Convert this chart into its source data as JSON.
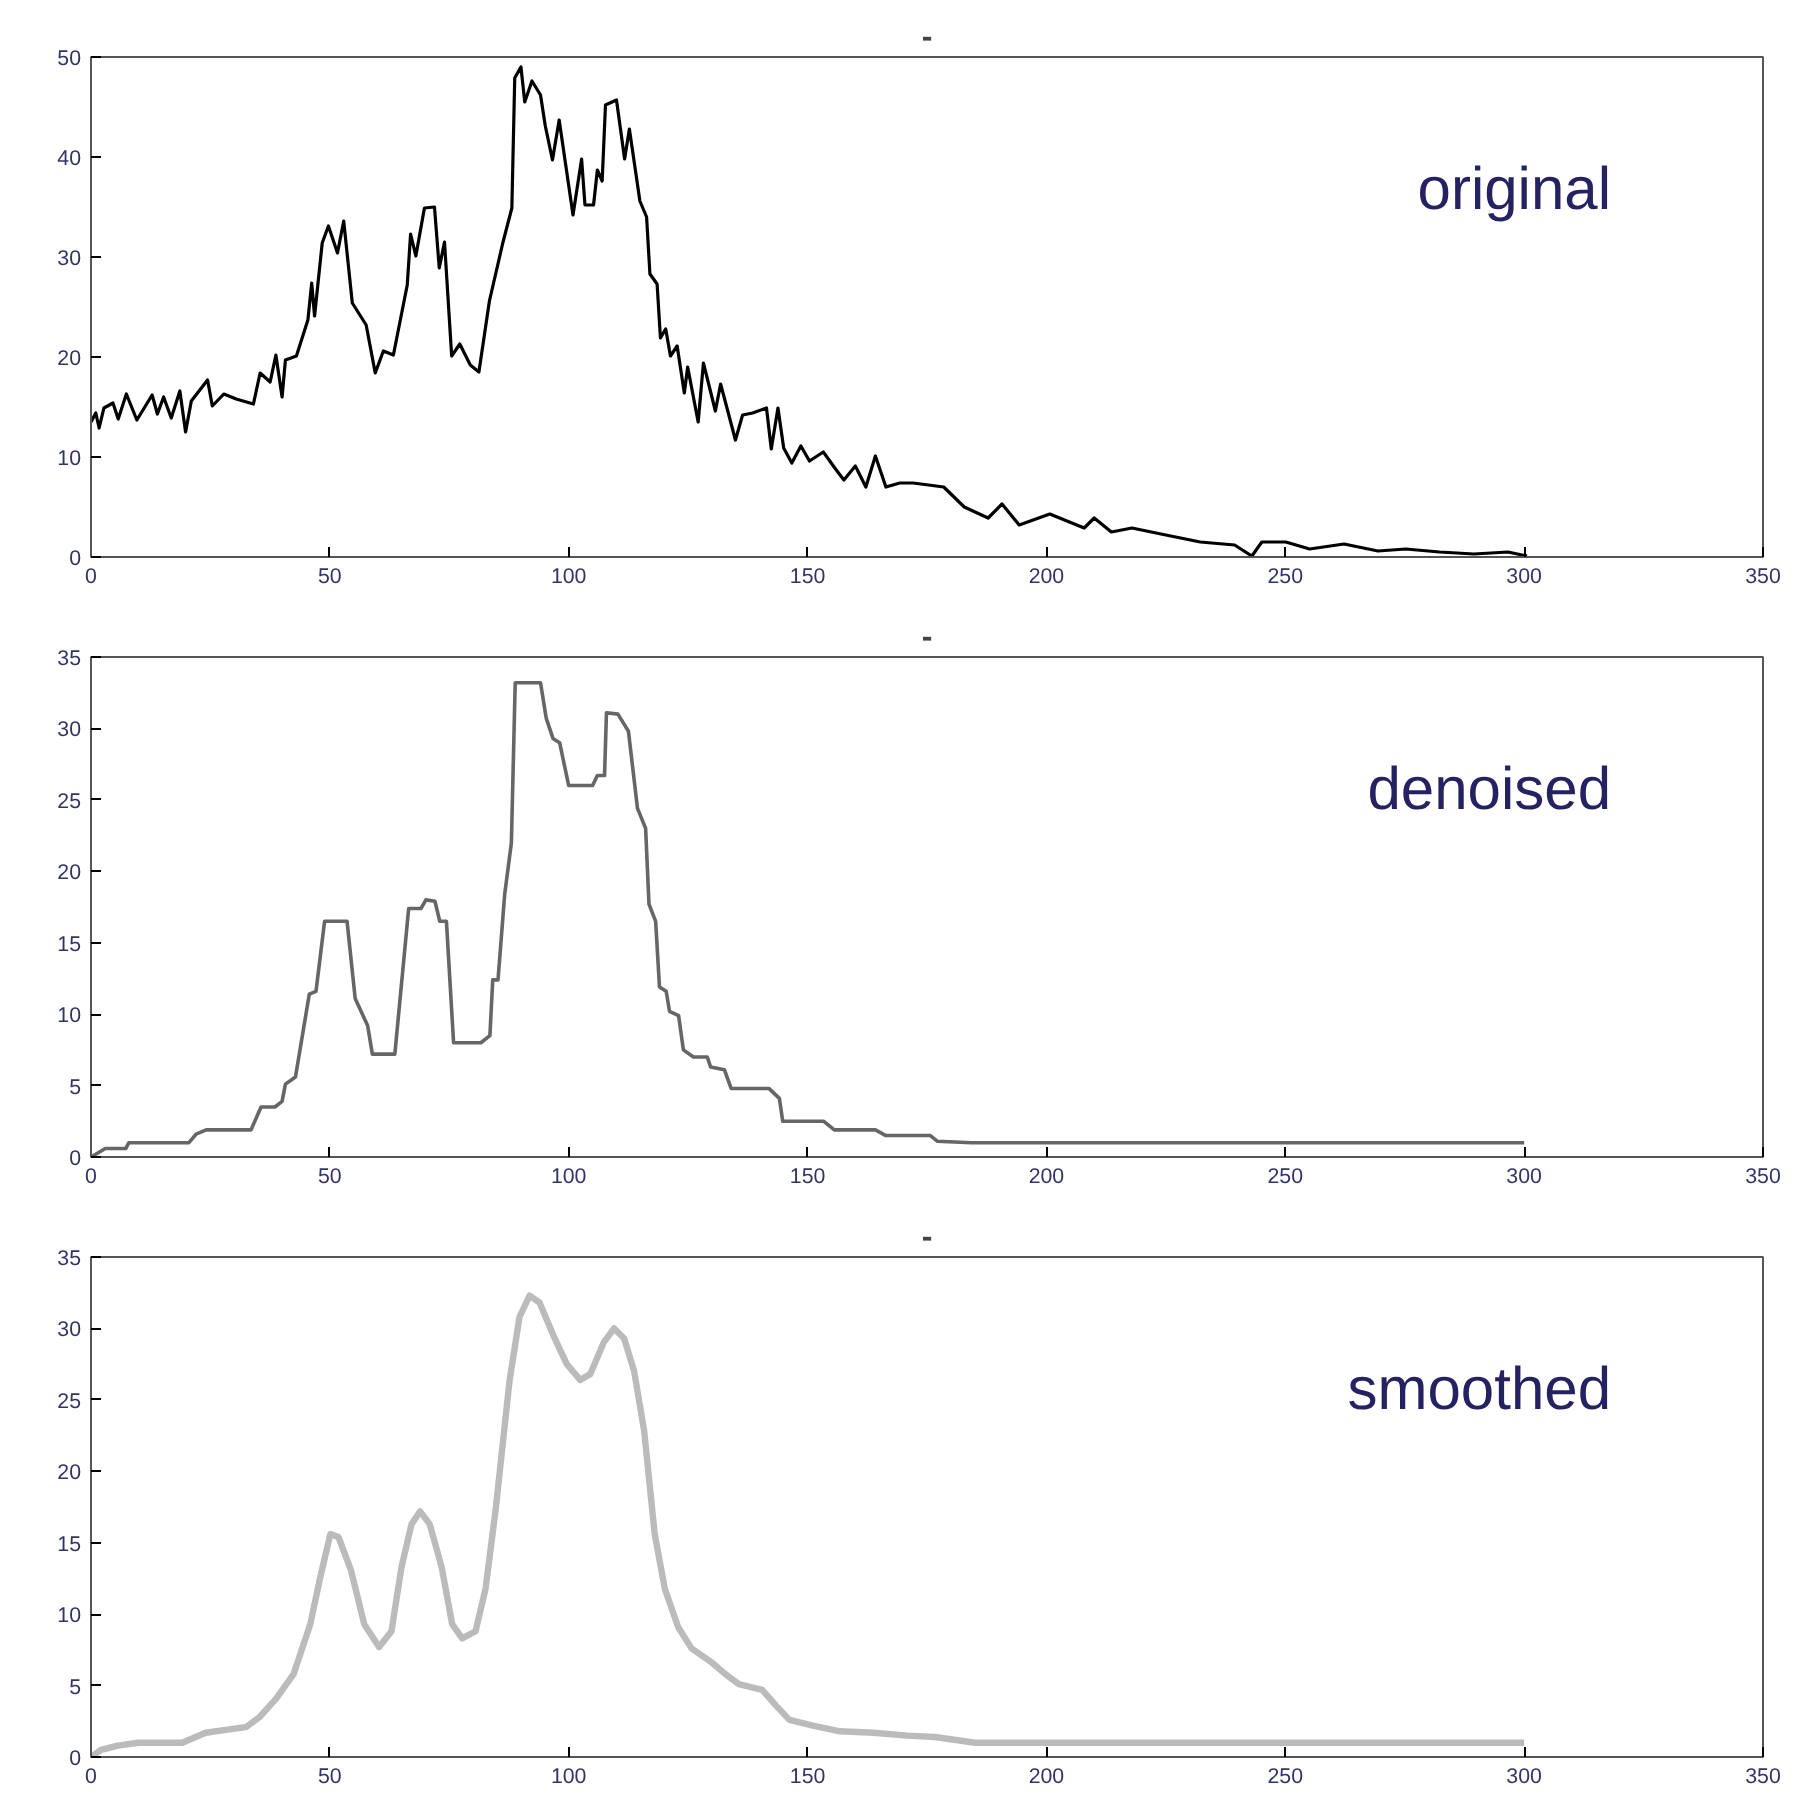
{
  "chart_data": [
    {
      "type": "line",
      "title": "-",
      "annotations": [
        "original"
      ],
      "xlim": [
        0,
        350
      ],
      "ylim": [
        0,
        50
      ],
      "xticks": [
        0,
        50,
        100,
        150,
        200,
        250,
        300,
        350
      ],
      "yticks": [
        0,
        10,
        20,
        30,
        40,
        50
      ],
      "grid": false,
      "series": [
        {
          "color": "#000000",
          "x": [
            0,
            1,
            1.7,
            2.7,
            4.6,
            5.7,
            7.4,
            9.6,
            12.8,
            13.9,
            15.2,
            16.8,
            18.6,
            19.8,
            21,
            24.4,
            25.4,
            27.8,
            30.4,
            34,
            35.4,
            37.5,
            38.7,
            40,
            40.7,
            43,
            45.4,
            46.2,
            46.8,
            48.4,
            49.7,
            51.6,
            52.9,
            54.7,
            57.6,
            59.5,
            61.2,
            63.3,
            66.2,
            66.9,
            68,
            69.8,
            71.9,
            72.9,
            74,
            75.5,
            77.2,
            79.4,
            81.2,
            83.4,
            86.2,
            88.1,
            88.7,
            90,
            90.8,
            92.3,
            94.1,
            95.1,
            96.6,
            98,
            100.9,
            102.7,
            103.4,
            105.2,
            106,
            107,
            107.7,
            110,
            111.7,
            112.7,
            114.9,
            116.3,
            117,
            118.5,
            119.2,
            120.3,
            121.3,
            122.7,
            124.2,
            124.9,
            127.1,
            128.2,
            130.7,
            131.8,
            134.9,
            136.4,
            138.5,
            141.4,
            142.4,
            143.8,
            145,
            146.7,
            148.6,
            150.4,
            153.3,
            155.7,
            157.6,
            160,
            162.2,
            164.2,
            166.4,
            169.3,
            172.1,
            178.5,
            182.8,
            187.8,
            190.7,
            194.3,
            200.7,
            207.9,
            210,
            213.6,
            217.9,
            225,
            232.2,
            239.4,
            243,
            245.1,
            250.1,
            255.1,
            262.3,
            269.4,
            275.2,
            282.3,
            289.5,
            296.6,
            300.6
          ],
          "values": [
            13.5,
            14.4,
            12.9,
            14.9,
            15.4,
            13.8,
            16.3,
            13.7,
            16.2,
            14.3,
            16,
            13.9,
            16.6,
            12.5,
            15.6,
            17.7,
            15.1,
            16.3,
            15.8,
            15.3,
            18.4,
            17.5,
            20.2,
            16,
            19.7,
            20.1,
            23.7,
            27.4,
            24.1,
            31.4,
            33.1,
            30.4,
            33.6,
            25.4,
            23.2,
            18.4,
            20.6,
            20.2,
            27.2,
            32.3,
            30.1,
            34.9,
            35,
            28.9,
            31.5,
            20.1,
            21.3,
            19.2,
            18.5,
            25.6,
            31.4,
            34.9,
            47.9,
            49,
            45.5,
            47.6,
            46.2,
            43.1,
            39.7,
            43.7,
            34.2,
            39.8,
            35.2,
            35.2,
            38.7,
            37.6,
            45.2,
            45.7,
            39.8,
            42.8,
            35.6,
            34,
            28.3,
            27.3,
            21.9,
            22.8,
            20.1,
            21.1,
            16.4,
            19,
            13.5,
            19.4,
            14.6,
            17.3,
            11.7,
            14.2,
            14.4,
            14.9,
            10.8,
            14.9,
            10.9,
            9.4,
            11.1,
            9.6,
            10.5,
            8.9,
            7.7,
            9.1,
            7,
            10.1,
            7,
            7.4,
            7.4,
            7,
            5,
            3.9,
            5.3,
            3.2,
            4.3,
            2.9,
            3.9,
            2.5,
            2.9,
            2.2,
            1.5,
            1.2,
            0.1,
            1.5,
            1.5,
            0.8,
            1.3,
            0.6,
            0.8,
            0.5,
            0.3,
            0.5,
            0.1
          ]
        }
      ]
    },
    {
      "type": "line",
      "title": "-",
      "annotations": [
        "denoised"
      ],
      "xlim": [
        0,
        350
      ],
      "ylim": [
        0,
        35
      ],
      "xticks": [
        0,
        50,
        100,
        150,
        200,
        250,
        300,
        350
      ],
      "yticks": [
        0,
        5,
        10,
        15,
        20,
        25,
        30,
        35
      ],
      "grid": false,
      "series": [
        {
          "color": "#666666",
          "x": [
            0,
            3,
            7.3,
            7.9,
            20.5,
            22,
            24.1,
            33.5,
            35.6,
            38.5,
            40,
            40.7,
            42.8,
            45.7,
            47.1,
            48.9,
            53.6,
            55.3,
            57.9,
            58.9,
            63.6,
            66.5,
            69.1,
            70.1,
            72,
            73,
            74.4,
            75.9,
            81.6,
            83.5,
            84.1,
            85.2,
            86.6,
            88,
            88.8,
            94.1,
            95.3,
            96.7,
            98.1,
            100,
            105,
            106,
            107.5,
            107.9,
            110.3,
            112.5,
            114.4,
            116.1,
            116.8,
            118.2,
            119,
            120.4,
            121.1,
            123,
            124,
            126.1,
            129,
            129.7,
            132.6,
            134,
            141.9,
            144.1,
            144.8,
            153.4,
            155.6,
            164.2,
            166.4,
            175.7,
            177.2,
            184.3,
            300
          ],
          "values": [
            0,
            0.6,
            0.6,
            1,
            1,
            1.6,
            1.9,
            1.9,
            3.5,
            3.5,
            3.9,
            5.1,
            5.6,
            11.4,
            11.6,
            16.5,
            16.5,
            11.1,
            9.2,
            7.2,
            7.2,
            17.4,
            17.4,
            18,
            17.9,
            16.5,
            16.5,
            8,
            8,
            8.5,
            12.4,
            12.4,
            18.4,
            22,
            33.2,
            33.2,
            30.7,
            29.3,
            29,
            26,
            26,
            26.7,
            26.7,
            31.1,
            31,
            29.8,
            24.4,
            23,
            17.7,
            16.5,
            11.9,
            11.6,
            10.2,
            9.9,
            7.5,
            7,
            7,
            6.3,
            6.1,
            4.8,
            4.8,
            4.1,
            2.5,
            2.5,
            1.9,
            1.9,
            1.5,
            1.5,
            1.1,
            1,
            1
          ]
        }
      ]
    },
    {
      "type": "line",
      "title": "-",
      "annotations": [
        "smoothed"
      ],
      "xlim": [
        0,
        350
      ],
      "ylim": [
        0,
        35
      ],
      "xticks": [
        0,
        50,
        100,
        150,
        200,
        250,
        300,
        350
      ],
      "yticks": [
        0,
        5,
        10,
        15,
        20,
        25,
        30,
        35
      ],
      "grid": false,
      "series": [
        {
          "color": "#bbbbbb",
          "x": [
            0,
            2.1,
            5.6,
            9.9,
            19.1,
            24,
            28.2,
            32.5,
            35.3,
            38.8,
            42.4,
            45.9,
            48,
            50.1,
            51.8,
            54.4,
            57.2,
            60.3,
            62.9,
            65,
            67.1,
            68.9,
            70.9,
            73.4,
            75.6,
            77.7,
            80.5,
            82.6,
            84.7,
            87.6,
            89.7,
            91.8,
            93.9,
            96.8,
            99.6,
            102.4,
            104.5,
            107.3,
            109.5,
            111.6,
            113.7,
            115.8,
            118,
            120.1,
            122.9,
            125.7,
            130,
            132.8,
            135.6,
            140.5,
            143.4,
            146.2,
            151.1,
            156.8,
            163.8,
            170.9,
            176.6,
            182.9,
            185,
            300
          ],
          "values": [
            0,
            0.5,
            0.8,
            1,
            1,
            1.7,
            1.9,
            2.1,
            2.8,
            4.1,
            5.8,
            9.3,
            12.6,
            15.6,
            15.4,
            13.1,
            9.3,
            7.7,
            8.8,
            13.3,
            16.3,
            17.2,
            16.3,
            13.3,
            9.3,
            8.3,
            8.8,
            11.8,
            17.3,
            26.3,
            30.8,
            32.3,
            31.8,
            29.5,
            27.5,
            26.4,
            26.8,
            29,
            30,
            29.3,
            27,
            22.8,
            15.6,
            11.8,
            9.1,
            7.6,
            6.6,
            5.8,
            5.1,
            4.7,
            3.6,
            2.6,
            2.2,
            1.8,
            1.7,
            1.5,
            1.4,
            1.1,
            1,
            1
          ]
        }
      ]
    }
  ]
}
